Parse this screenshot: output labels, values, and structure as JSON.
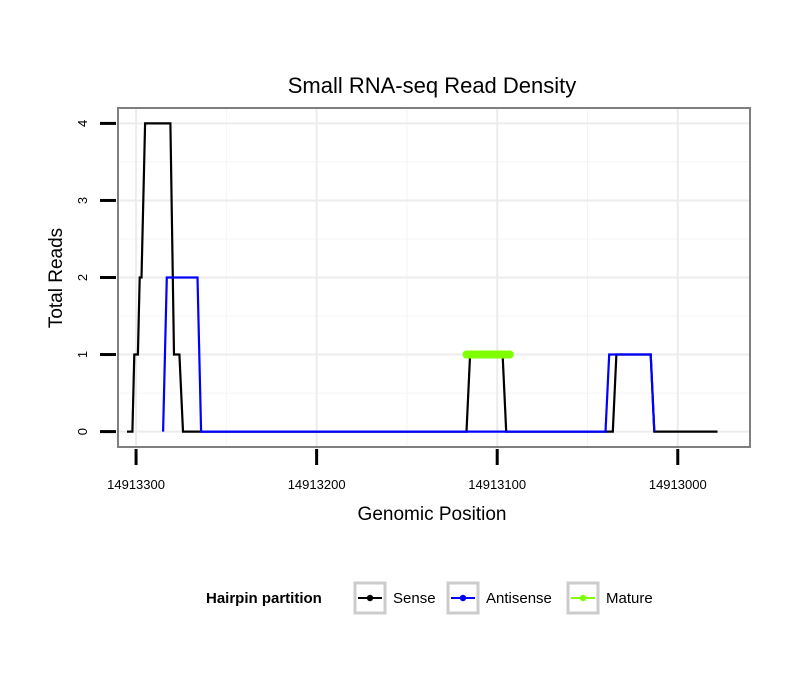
{
  "chart_data": {
    "type": "line",
    "title": "Small RNA-seq Read Density",
    "xlabel": "Genomic Position",
    "ylabel": "Total Reads",
    "xlim": [
      14913310,
      14912960
    ],
    "ylim": [
      -0.2,
      4.2
    ],
    "x_reversed": true,
    "grid": true,
    "legend_position": "bottom",
    "x_ticks": [
      14913300,
      14913200,
      14913100,
      14913000
    ],
    "x_tick_labels": [
      "14913300",
      "14913200",
      "14913100",
      "14913000"
    ],
    "y_ticks": [
      0,
      1,
      2,
      3,
      4
    ],
    "y_tick_labels": [
      "0",
      "1",
      "2",
      "3",
      "4"
    ],
    "legend_title": "Hairpin partition",
    "series": [
      {
        "name": "Sense",
        "color": "#000000",
        "width": "thin",
        "points": [
          [
            14913305,
            0
          ],
          [
            14913302,
            0
          ],
          [
            14913301,
            1
          ],
          [
            14913299,
            1
          ],
          [
            14913298,
            2
          ],
          [
            14913297,
            2
          ],
          [
            14913295,
            4
          ],
          [
            14913281,
            4
          ],
          [
            14913279,
            1
          ],
          [
            14913276,
            1
          ],
          [
            14913274,
            0
          ],
          [
            14913117,
            0
          ],
          [
            14913115,
            1
          ],
          [
            14913097,
            1
          ],
          [
            14913095,
            0
          ],
          [
            14913036,
            0
          ],
          [
            14913034,
            1
          ],
          [
            14913015,
            1
          ],
          [
            14913013,
            0
          ],
          [
            14912978,
            0
          ]
        ]
      },
      {
        "name": "Antisense",
        "color": "#0000ff",
        "width": "thin",
        "points": [
          [
            14913285,
            0
          ],
          [
            14913283,
            2
          ],
          [
            14913266,
            2
          ],
          [
            14913264,
            0
          ],
          [
            14913040,
            0
          ],
          [
            14913038,
            1
          ],
          [
            14913015,
            1
          ],
          [
            14913013,
            0
          ]
        ]
      },
      {
        "name": "Mature",
        "color": "#7fff00",
        "width": "thick",
        "points": [
          [
            14913117,
            1
          ],
          [
            14913093,
            1
          ]
        ]
      }
    ]
  }
}
